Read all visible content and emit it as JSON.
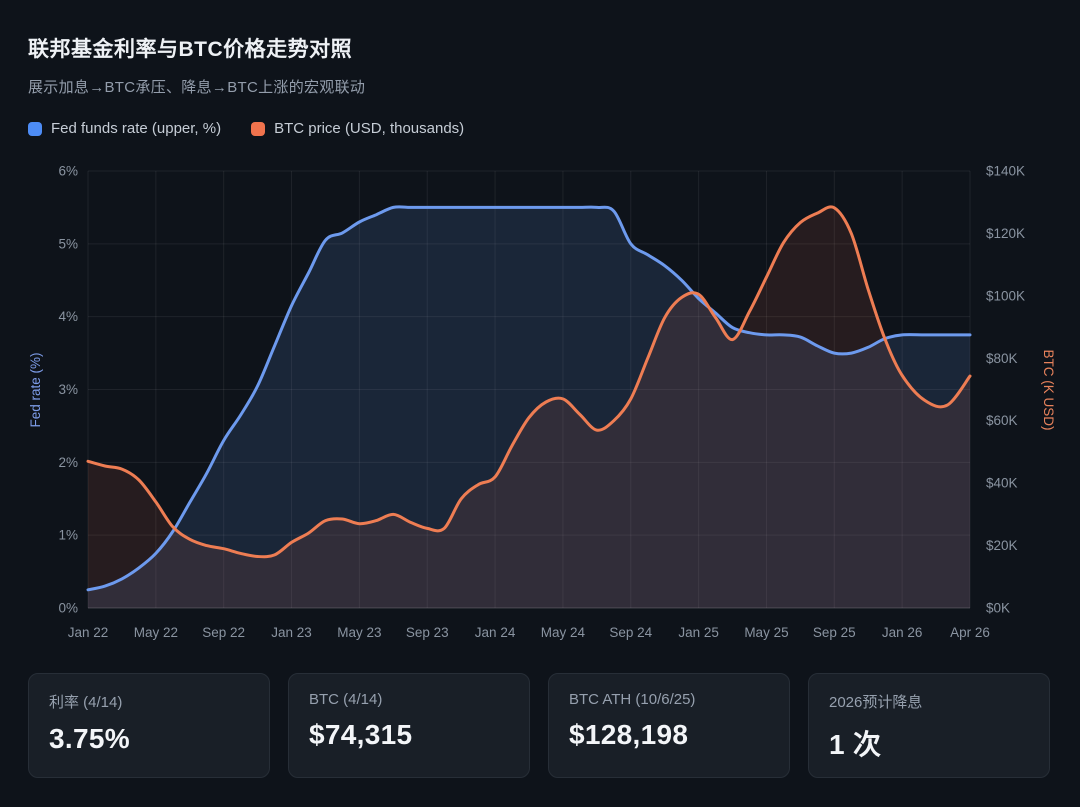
{
  "header": {
    "title": "联邦基金利率与BTC价格走势对照",
    "subtitle": "展示加息→BTC承压、降息→BTC上涨的宏观联动"
  },
  "legend": [
    {
      "label": "Fed funds rate (upper, %)",
      "color": "#4d8cf5"
    },
    {
      "label": "BTC price (USD, thousands)",
      "color": "#f0734d"
    }
  ],
  "chart_data": {
    "type": "line",
    "title": "联邦基金利率与BTC价格走势对照",
    "x_unit": "month",
    "x_start": "Jan 2022",
    "x_end": "Apr 2026",
    "x_tick_labels": [
      "Jan 22",
      "May 22",
      "Sep 22",
      "Jan 23",
      "May 23",
      "Sep 23",
      "Jan 24",
      "May 24",
      "Sep 24",
      "Jan 25",
      "May 25",
      "Sep 25",
      "Jan 26",
      "Apr 26"
    ],
    "x_tick_positions": [
      0,
      4,
      8,
      12,
      16,
      20,
      24,
      28,
      32,
      36,
      40,
      44,
      48,
      51
    ],
    "grid": true,
    "legend_position": "top-left",
    "left_axis": {
      "label": "Fed rate (%)",
      "min": 0,
      "max": 6,
      "ticks": [
        "0%",
        "1%",
        "2%",
        "3%",
        "4%",
        "5%",
        "6%"
      ],
      "color": "#7d9ce8"
    },
    "right_axis": {
      "label": "BTC (K USD)",
      "min": 0,
      "max": 140,
      "ticks": [
        "$0K",
        "$20K",
        "$40K",
        "$60K",
        "$80K",
        "$100K",
        "$120K",
        "$140K"
      ],
      "color": "#e8835c"
    },
    "series": [
      {
        "id": "fed-rate",
        "name": "Fed funds rate (upper, %)",
        "axis": "left",
        "color": "#6d9aee",
        "fill": "rgba(100,145,225,0.15)",
        "values": [
          0.25,
          0.3,
          0.4,
          0.55,
          0.75,
          1.05,
          1.45,
          1.85,
          2.3,
          2.65,
          3.05,
          3.6,
          4.15,
          4.6,
          5.05,
          5.15,
          5.3,
          5.4,
          5.5,
          5.5,
          5.5,
          5.5,
          5.5,
          5.5,
          5.5,
          5.5,
          5.5,
          5.5,
          5.5,
          5.5,
          5.5,
          5.45,
          5.0,
          4.85,
          4.7,
          4.5,
          4.25,
          4.05,
          3.85,
          3.78,
          3.75,
          3.75,
          3.72,
          3.6,
          3.5,
          3.5,
          3.58,
          3.7,
          3.75,
          3.75,
          3.75,
          3.75
        ]
      },
      {
        "id": "btc-price",
        "name": "BTC price (USD, thousands)",
        "axis": "right",
        "color": "#ee7d53",
        "fill": "rgba(235,112,72,0.11)",
        "values": [
          47,
          45.5,
          44.5,
          41,
          34,
          26,
          22,
          20,
          19,
          17.5,
          16.5,
          17,
          21,
          24,
          28,
          28.5,
          27,
          28,
          30,
          27.5,
          25.5,
          25.5,
          35,
          39.5,
          42,
          52,
          61,
          66,
          67,
          62,
          57,
          60,
          67,
          80,
          93,
          99.5,
          100.5,
          93,
          86,
          95,
          106,
          117,
          123.5,
          126.5,
          128.2,
          120,
          102,
          86,
          74.5,
          66.5,
          65,
          74.3
        ]
      }
    ]
  },
  "cards": [
    {
      "label": "利率 (4/14)",
      "value": "3.75%"
    },
    {
      "label": "BTC (4/14)",
      "value": "$74,315"
    },
    {
      "label": "BTC ATH (10/6/25)",
      "value": "$128,198"
    },
    {
      "label": "2026预计降息",
      "value": "1 次"
    }
  ],
  "theme": {
    "background": "#0e131a",
    "card_background": "#191f27",
    "card_border": "#272e37",
    "grid_color": "rgba(255,255,255,0.07)",
    "axis_line_color": "rgba(255,255,255,0.14)",
    "tick_label_color": "#8a94a1",
    "title_color": "#eef1f5",
    "subtitle_color": "#939dab",
    "legend_text_color": "#c6cdd6"
  }
}
